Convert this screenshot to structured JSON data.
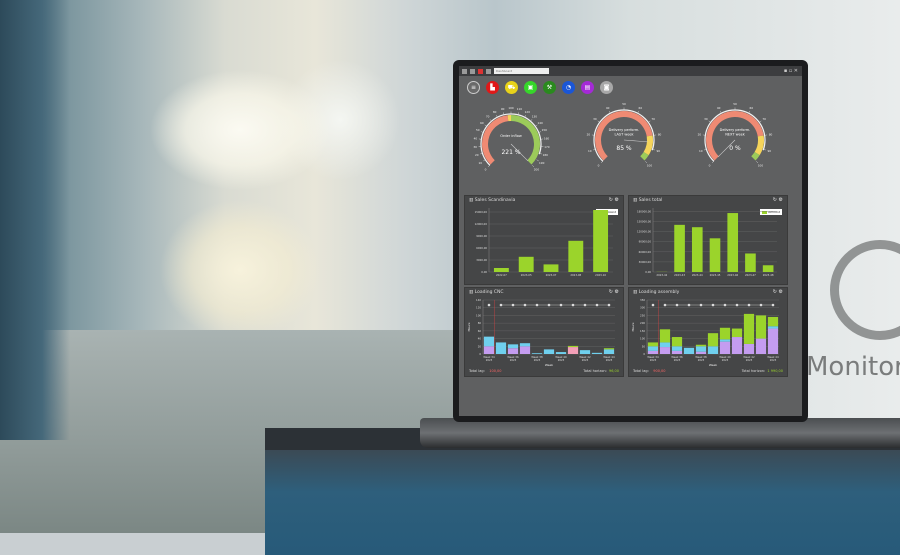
{
  "toolbar": {
    "selector": "Dashboard"
  },
  "icons": [
    {
      "name": "menu-icon",
      "color": "#6a6a6a",
      "glyph": "≡"
    },
    {
      "name": "factory-icon",
      "color": "#e01818",
      "glyph": "▙"
    },
    {
      "name": "cart-icon",
      "color": "#e8d21a",
      "glyph": "⛟"
    },
    {
      "name": "truck-icon",
      "color": "#36d62a",
      "glyph": "▣"
    },
    {
      "name": "tool-icon",
      "color": "#2a8a1e",
      "glyph": "⚒"
    },
    {
      "name": "clock-icon",
      "color": "#1a56d6",
      "glyph": "◔"
    },
    {
      "name": "document-icon",
      "color": "#a42ad6",
      "glyph": "▤"
    },
    {
      "name": "chat-icon",
      "color": "#a8a8a8",
      "glyph": "◙"
    }
  ],
  "gauges": [
    {
      "title": "Order inflow",
      "value_label": "221 %",
      "value": 221,
      "min": 0,
      "max": 200,
      "ticks": [
        0,
        10,
        20,
        30,
        40,
        50,
        60,
        70,
        80,
        90,
        100,
        110,
        120,
        130,
        140,
        150,
        160,
        170,
        180,
        190,
        200
      ],
      "bands": [
        [
          0,
          95,
          "#ef8a73"
        ],
        [
          95,
          100,
          "#f5d45a"
        ],
        [
          100,
          200,
          "#9ccb5a"
        ]
      ]
    },
    {
      "title": "Delivery perform.",
      "title2": "LAST week",
      "value_label": "85 %",
      "value": 85,
      "min": 0,
      "max": 100,
      "ticks": [
        0,
        10,
        20,
        30,
        40,
        50,
        60,
        70,
        80,
        90,
        100
      ],
      "bands": [
        [
          0,
          80,
          "#ef8a73"
        ],
        [
          80,
          95,
          "#f5d45a"
        ],
        [
          95,
          100,
          "#9ccb5a"
        ]
      ]
    },
    {
      "title": "Delivery perform.",
      "title2": "NEXT week",
      "value_label": "0 %",
      "value": 0,
      "min": 0,
      "max": 100,
      "ticks": [
        0,
        10,
        20,
        30,
        40,
        50,
        60,
        70,
        80,
        90,
        100
      ],
      "bands": [
        [
          0,
          80,
          "#ef8a73"
        ],
        [
          80,
          95,
          "#f5d45a"
        ],
        [
          95,
          100,
          "#9ccb5a"
        ]
      ]
    }
  ],
  "chart_data": [
    {
      "type": "bar",
      "title": "Sales Scandinavia",
      "legend": "Amount",
      "legend_position": "top-right",
      "categories": [
        "2022-07",
        "2023-05",
        "2023-07",
        "2023-08",
        "2023-10"
      ],
      "values": [
        1000,
        3800,
        1900,
        7800,
        15500
      ],
      "yticks": [
        "0,00",
        "3000,00",
        "6000,00",
        "9000,00",
        "12000,00",
        "15000,00"
      ],
      "ylim": [
        0,
        16000
      ],
      "color": "#9bd42b"
    },
    {
      "type": "bar",
      "title": "Sales total",
      "legend": "Amount",
      "legend_position": "top-right",
      "categories": [
        "2023-42",
        "2023-43",
        "2023-44",
        "2023-45",
        "2023-46",
        "2023-47",
        "2023-48"
      ],
      "values": [
        500,
        140000,
        133000,
        100000,
        175000,
        55000,
        20000
      ],
      "yticks": [
        "0,00",
        "30000,00",
        "60000,00",
        "90000,00",
        "120000,00",
        "150000,00",
        "180000,00"
      ],
      "ylim": [
        0,
        190000
      ],
      "color": "#9bd42b"
    },
    {
      "type": "stacked-bar",
      "title": "Loading CNC",
      "ylabel": "Hours",
      "xlabel": "Week",
      "ylim": [
        0,
        140
      ],
      "yticks": [
        "0",
        "20",
        "40",
        "60",
        "80",
        "100",
        "120",
        "140"
      ],
      "categories": [
        "Week 34\n2023",
        "",
        "Week 36\n2023",
        "",
        "Week 38\n2023",
        "",
        "Week 40\n2023",
        "",
        "Week 42\n2023",
        "",
        "Week 44\n2023"
      ],
      "series": [
        {
          "color": "#c49cf0",
          "values": [
            20,
            0,
            15,
            20,
            0,
            0,
            0,
            0,
            0,
            0,
            0
          ]
        },
        {
          "color": "#f4a0b8",
          "values": [
            0,
            0,
            0,
            0,
            0,
            0,
            0,
            18,
            0,
            0,
            0
          ]
        },
        {
          "color": "#6fd0ee",
          "values": [
            25,
            30,
            10,
            8,
            2,
            12,
            5,
            0,
            10,
            3,
            12
          ]
        },
        {
          "color": "#9bd42b",
          "values": [
            0,
            0,
            0,
            0,
            0,
            0,
            0,
            3,
            0,
            0,
            3
          ]
        }
      ],
      "footer": {
        "lag_label": "Total lag:",
        "lag_value": "100,00",
        "horizon_label": "Total horizon:",
        "horizon_value": "96,00"
      }
    },
    {
      "type": "stacked-bar",
      "title": "Loading assembly",
      "ylabel": "Hours",
      "xlabel": "Week",
      "ylim": [
        0,
        350
      ],
      "yticks": [
        "0",
        "50",
        "100",
        "150",
        "200",
        "250",
        "300",
        "350"
      ],
      "categories": [
        "Week 34\n2023",
        "",
        "Week 36\n2023",
        "",
        "Week 38\n2023",
        "",
        "Week 40\n2023",
        "",
        "Week 42\n2023",
        "",
        "Week 44\n2023"
      ],
      "series": [
        {
          "color": "#c49cf0",
          "values": [
            20,
            45,
            20,
            0,
            15,
            0,
            80,
            110,
            65,
            100,
            165
          ]
        },
        {
          "color": "#6fd0ee",
          "values": [
            30,
            30,
            30,
            40,
            35,
            50,
            15,
            0,
            0,
            0,
            15
          ]
        },
        {
          "color": "#9bd42b",
          "values": [
            25,
            85,
            60,
            0,
            10,
            85,
            75,
            55,
            195,
            150,
            60
          ]
        }
      ],
      "footer": {
        "lag_label": "Total lag:",
        "lag_value": "900,00",
        "horizon_label": "Total horizon:",
        "horizon_value": "1 990,00"
      }
    }
  ],
  "background": {
    "brand_text": "Monitor"
  }
}
